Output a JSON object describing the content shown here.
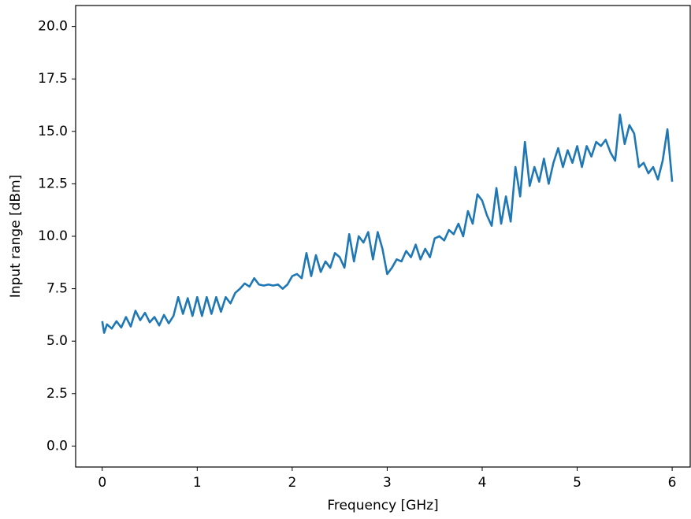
{
  "chart_data": {
    "type": "line",
    "xlabel": "Frequency [GHz]",
    "ylabel": "Input range [dBm]",
    "xlim": [
      -0.28,
      6.19
    ],
    "ylim": [
      -1.0,
      21.0
    ],
    "xticks": [
      0,
      1,
      2,
      3,
      4,
      5,
      6
    ],
    "yticks": [
      {
        "value": 0,
        "label": "0.0"
      },
      2.5,
      {
        "value": 5,
        "label": "5.0"
      },
      7.5,
      {
        "value": 10,
        "label": "10.0"
      },
      12.5,
      {
        "value": 15,
        "label": "15.0"
      },
      17.5,
      {
        "value": 20,
        "label": "20.0"
      }
    ],
    "grid": false,
    "series": [
      {
        "color": "#1f77b4",
        "x": [
          0,
          0.02,
          0.05,
          0.1,
          0.15,
          0.2,
          0.25,
          0.3,
          0.35,
          0.4,
          0.45,
          0.5,
          0.55,
          0.6,
          0.65,
          0.7,
          0.75,
          0.8,
          0.85,
          0.9,
          0.95,
          1.0,
          1.05,
          1.1,
          1.15,
          1.2,
          1.25,
          1.3,
          1.35,
          1.4,
          1.45,
          1.5,
          1.55,
          1.6,
          1.65,
          1.7,
          1.75,
          1.8,
          1.85,
          1.9,
          1.95,
          2.0,
          2.05,
          2.1,
          2.15,
          2.2,
          2.25,
          2.3,
          2.35,
          2.4,
          2.45,
          2.5,
          2.55,
          2.6,
          2.65,
          2.7,
          2.75,
          2.8,
          2.85,
          2.9,
          2.95,
          3.0,
          3.05,
          3.1,
          3.15,
          3.2,
          3.25,
          3.3,
          3.35,
          3.4,
          3.45,
          3.5,
          3.55,
          3.6,
          3.65,
          3.7,
          3.75,
          3.8,
          3.85,
          3.9,
          3.95,
          4.0,
          4.05,
          4.1,
          4.15,
          4.2,
          4.25,
          4.3,
          4.35,
          4.4,
          4.45,
          4.5,
          4.55,
          4.6,
          4.65,
          4.7,
          4.75,
          4.8,
          4.85,
          4.9,
          4.95,
          5.0,
          5.05,
          5.1,
          5.15,
          5.2,
          5.25,
          5.3,
          5.35,
          5.4,
          5.45,
          5.5,
          5.55,
          5.6,
          5.65,
          5.7,
          5.75,
          5.8,
          5.85,
          5.9,
          5.95,
          6.0
        ],
        "values": [
          5.95,
          5.4,
          5.8,
          5.6,
          5.95,
          5.65,
          6.15,
          5.7,
          6.45,
          6.0,
          6.35,
          5.9,
          6.15,
          5.75,
          6.25,
          5.85,
          6.2,
          7.1,
          6.3,
          7.05,
          6.2,
          7.1,
          6.2,
          7.1,
          6.3,
          7.1,
          6.4,
          7.1,
          6.8,
          7.3,
          7.5,
          7.75,
          7.6,
          8.0,
          7.7,
          7.65,
          7.7,
          7.65,
          7.7,
          7.5,
          7.7,
          8.1,
          8.2,
          8.0,
          9.2,
          8.1,
          9.1,
          8.3,
          8.8,
          8.5,
          9.2,
          9.0,
          8.5,
          10.1,
          8.8,
          10.0,
          9.7,
          10.2,
          8.9,
          10.2,
          9.4,
          8.2,
          8.5,
          8.9,
          8.8,
          9.3,
          9.0,
          9.6,
          8.9,
          9.4,
          9.0,
          9.9,
          10.0,
          9.8,
          10.3,
          10.1,
          10.6,
          10.0,
          11.2,
          10.6,
          12.0,
          11.7,
          11.0,
          10.5,
          12.3,
          10.6,
          11.9,
          10.7,
          13.3,
          11.9,
          14.5,
          12.4,
          13.3,
          12.6,
          13.7,
          12.5,
          13.5,
          14.2,
          13.3,
          14.1,
          13.5,
          14.3,
          13.3,
          14.3,
          13.8,
          14.5,
          14.3,
          14.6,
          14.0,
          13.6,
          15.8,
          14.4,
          15.3,
          14.9,
          13.3,
          13.5,
          13.0,
          13.3,
          12.7,
          13.6,
          15.1,
          12.6
        ]
      }
    ]
  }
}
